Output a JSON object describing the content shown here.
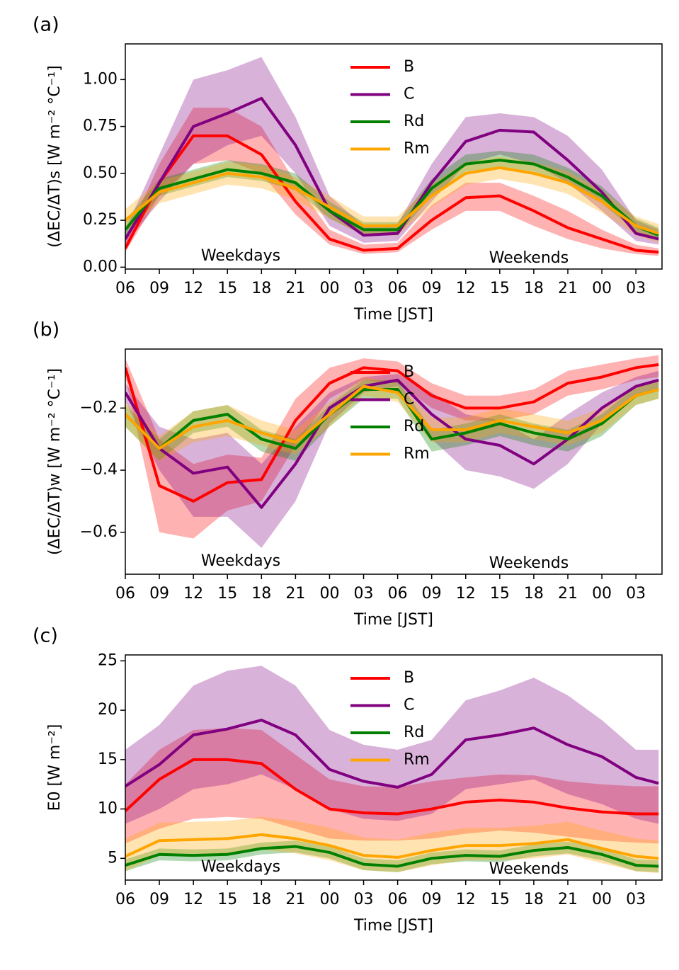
{
  "chart_data": [
    {
      "type": "line",
      "panel_label": "(a)",
      "y_label": "(ΔEC/ΔT)s [W m⁻² °C⁻¹]",
      "x_label": "Time [JST]",
      "annotations": [
        "Weekdays",
        "Weekends"
      ],
      "x": [
        0,
        3,
        6,
        9,
        12,
        15,
        18,
        21,
        24,
        27,
        30,
        33,
        36,
        39,
        42,
        45,
        47
      ],
      "xlim": [
        0,
        47.3
      ],
      "xticks": [
        {
          "value": 0,
          "label": "06"
        },
        {
          "value": 3,
          "label": "09"
        },
        {
          "value": 6,
          "label": "12"
        },
        {
          "value": 9,
          "label": "15"
        },
        {
          "value": 12,
          "label": "18"
        },
        {
          "value": 15,
          "label": "21"
        },
        {
          "value": 18,
          "label": "00"
        },
        {
          "value": 21,
          "label": "03"
        },
        {
          "value": 24,
          "label": "06"
        },
        {
          "value": 27,
          "label": "09"
        },
        {
          "value": 30,
          "label": "12"
        },
        {
          "value": 33,
          "label": "15"
        },
        {
          "value": 36,
          "label": "18"
        },
        {
          "value": 39,
          "label": "21"
        },
        {
          "value": 42,
          "label": "00"
        },
        {
          "value": 45,
          "label": "03"
        }
      ],
      "ylim": [
        -0.01,
        1.19
      ],
      "yticks": [
        {
          "value": 0,
          "label": "0.00"
        },
        {
          "value": 0.25,
          "label": "0.25"
        },
        {
          "value": 0.5,
          "label": "0.50"
        },
        {
          "value": 0.75,
          "label": "0.75"
        },
        {
          "value": 1,
          "label": "1.00"
        }
      ],
      "series": [
        {
          "name": "B",
          "color": "#ff0000",
          "values": [
            0.1,
            0.45,
            0.7,
            0.7,
            0.6,
            0.35,
            0.15,
            0.09,
            0.1,
            0.25,
            0.37,
            0.38,
            0.3,
            0.21,
            0.15,
            0.09,
            0.08
          ],
          "lower": [
            0.08,
            0.38,
            0.55,
            0.57,
            0.5,
            0.28,
            0.12,
            0.07,
            0.08,
            0.2,
            0.3,
            0.3,
            0.22,
            0.15,
            0.1,
            0.07,
            0.06
          ],
          "upper": [
            0.15,
            0.55,
            0.85,
            0.85,
            0.75,
            0.45,
            0.2,
            0.12,
            0.13,
            0.33,
            0.45,
            0.45,
            0.38,
            0.3,
            0.2,
            0.12,
            0.1
          ]
        },
        {
          "name": "C",
          "color": "#800080",
          "values": [
            0.15,
            0.45,
            0.75,
            0.82,
            0.9,
            0.65,
            0.3,
            0.17,
            0.18,
            0.45,
            0.67,
            0.73,
            0.72,
            0.57,
            0.4,
            0.18,
            0.15
          ],
          "lower": [
            0.12,
            0.35,
            0.55,
            0.65,
            0.7,
            0.5,
            0.22,
            0.13,
            0.14,
            0.35,
            0.55,
            0.6,
            0.55,
            0.45,
            0.3,
            0.14,
            0.12
          ],
          "upper": [
            0.2,
            0.6,
            1.0,
            1.05,
            1.12,
            0.8,
            0.38,
            0.22,
            0.23,
            0.55,
            0.8,
            0.82,
            0.8,
            0.7,
            0.52,
            0.25,
            0.2
          ]
        },
        {
          "name": "Rd",
          "color": "#008000",
          "values": [
            0.2,
            0.42,
            0.47,
            0.52,
            0.5,
            0.45,
            0.3,
            0.2,
            0.2,
            0.42,
            0.55,
            0.57,
            0.55,
            0.48,
            0.38,
            0.22,
            0.17
          ],
          "lower": [
            0.16,
            0.38,
            0.43,
            0.48,
            0.46,
            0.41,
            0.26,
            0.17,
            0.17,
            0.38,
            0.51,
            0.53,
            0.51,
            0.44,
            0.34,
            0.19,
            0.14
          ],
          "upper": [
            0.25,
            0.47,
            0.52,
            0.57,
            0.55,
            0.5,
            0.35,
            0.24,
            0.24,
            0.47,
            0.6,
            0.62,
            0.6,
            0.53,
            0.43,
            0.26,
            0.21
          ]
        },
        {
          "name": "Rm",
          "color": "#ffa500",
          "values": [
            0.25,
            0.4,
            0.45,
            0.5,
            0.48,
            0.42,
            0.32,
            0.22,
            0.22,
            0.38,
            0.5,
            0.53,
            0.5,
            0.45,
            0.35,
            0.22,
            0.18
          ],
          "lower": [
            0.19,
            0.34,
            0.39,
            0.44,
            0.42,
            0.36,
            0.26,
            0.17,
            0.17,
            0.32,
            0.44,
            0.47,
            0.44,
            0.39,
            0.29,
            0.17,
            0.13
          ],
          "upper": [
            0.31,
            0.46,
            0.51,
            0.56,
            0.54,
            0.48,
            0.38,
            0.27,
            0.27,
            0.44,
            0.56,
            0.59,
            0.56,
            0.51,
            0.41,
            0.27,
            0.23
          ]
        }
      ]
    },
    {
      "type": "line",
      "panel_label": "(b)",
      "y_label": "(ΔEC/ΔT)w [W m⁻² °C⁻¹]",
      "x_label": "Time [JST]",
      "annotations": [
        "Weekdays",
        "Weekends"
      ],
      "x": [
        0,
        3,
        6,
        9,
        12,
        15,
        18,
        21,
        24,
        27,
        30,
        33,
        36,
        39,
        42,
        45,
        47
      ],
      "xlim": [
        0,
        47.3
      ],
      "xticks": [
        {
          "value": 0,
          "label": "06"
        },
        {
          "value": 3,
          "label": "09"
        },
        {
          "value": 6,
          "label": "12"
        },
        {
          "value": 9,
          "label": "15"
        },
        {
          "value": 12,
          "label": "18"
        },
        {
          "value": 15,
          "label": "21"
        },
        {
          "value": 18,
          "label": "00"
        },
        {
          "value": 21,
          "label": "03"
        },
        {
          "value": 24,
          "label": "06"
        },
        {
          "value": 27,
          "label": "09"
        },
        {
          "value": 30,
          "label": "12"
        },
        {
          "value": 33,
          "label": "15"
        },
        {
          "value": 36,
          "label": "18"
        },
        {
          "value": 39,
          "label": "21"
        },
        {
          "value": 42,
          "label": "00"
        },
        {
          "value": 45,
          "label": "03"
        }
      ],
      "ylim": [
        -0.735,
        -0.01
      ],
      "yticks": [
        {
          "value": -0.6,
          "label": "−0.6"
        },
        {
          "value": -0.4,
          "label": "−0.4"
        },
        {
          "value": -0.2,
          "label": "−0.2"
        }
      ],
      "series": [
        {
          "name": "B",
          "color": "#ff0000",
          "values": [
            -0.07,
            -0.45,
            -0.5,
            -0.44,
            -0.43,
            -0.24,
            -0.12,
            -0.07,
            -0.08,
            -0.16,
            -0.2,
            -0.2,
            -0.18,
            -0.12,
            -0.1,
            -0.07,
            -0.06
          ],
          "lower": [
            -0.1,
            -0.6,
            -0.62,
            -0.53,
            -0.5,
            -0.32,
            -0.17,
            -0.11,
            -0.12,
            -0.2,
            -0.24,
            -0.24,
            -0.22,
            -0.16,
            -0.14,
            -0.11,
            -0.1
          ],
          "upper": [
            -0.04,
            -0.3,
            -0.38,
            -0.35,
            -0.36,
            -0.17,
            -0.07,
            -0.04,
            -0.05,
            -0.12,
            -0.16,
            -0.16,
            -0.14,
            -0.08,
            -0.06,
            -0.04,
            -0.03
          ]
        },
        {
          "name": "C",
          "color": "#800080",
          "values": [
            -0.15,
            -0.33,
            -0.41,
            -0.39,
            -0.52,
            -0.38,
            -0.2,
            -0.13,
            -0.11,
            -0.22,
            -0.3,
            -0.32,
            -0.38,
            -0.3,
            -0.2,
            -0.13,
            -0.11
          ],
          "lower": [
            -0.18,
            -0.4,
            -0.55,
            -0.55,
            -0.65,
            -0.5,
            -0.25,
            -0.15,
            -0.13,
            -0.3,
            -0.4,
            -0.42,
            -0.46,
            -0.38,
            -0.25,
            -0.16,
            -0.14
          ],
          "upper": [
            -0.12,
            -0.26,
            -0.3,
            -0.28,
            -0.38,
            -0.26,
            -0.15,
            -0.1,
            -0.09,
            -0.15,
            -0.22,
            -0.24,
            -0.3,
            -0.22,
            -0.15,
            -0.1,
            -0.08
          ]
        },
        {
          "name": "Rd",
          "color": "#008000",
          "values": [
            -0.22,
            -0.33,
            -0.24,
            -0.22,
            -0.3,
            -0.33,
            -0.22,
            -0.14,
            -0.14,
            -0.3,
            -0.28,
            -0.25,
            -0.28,
            -0.3,
            -0.25,
            -0.16,
            -0.14
          ],
          "lower": [
            -0.26,
            -0.37,
            -0.28,
            -0.26,
            -0.34,
            -0.37,
            -0.26,
            -0.17,
            -0.17,
            -0.34,
            -0.32,
            -0.29,
            -0.32,
            -0.34,
            -0.29,
            -0.19,
            -0.17
          ],
          "upper": [
            -0.19,
            -0.3,
            -0.21,
            -0.19,
            -0.27,
            -0.3,
            -0.19,
            -0.11,
            -0.11,
            -0.27,
            -0.25,
            -0.22,
            -0.25,
            -0.27,
            -0.22,
            -0.13,
            -0.11
          ]
        },
        {
          "name": "Rm",
          "color": "#ffa500",
          "values": [
            -0.22,
            -0.33,
            -0.26,
            -0.24,
            -0.28,
            -0.31,
            -0.22,
            -0.13,
            -0.15,
            -0.27,
            -0.27,
            -0.24,
            -0.26,
            -0.28,
            -0.24,
            -0.16,
            -0.14
          ],
          "lower": [
            -0.26,
            -0.37,
            -0.31,
            -0.29,
            -0.32,
            -0.35,
            -0.26,
            -0.16,
            -0.18,
            -0.31,
            -0.31,
            -0.28,
            -0.3,
            -0.32,
            -0.28,
            -0.19,
            -0.17
          ],
          "upper": [
            -0.18,
            -0.29,
            -0.21,
            -0.19,
            -0.24,
            -0.27,
            -0.18,
            -0.1,
            -0.12,
            -0.23,
            -0.23,
            -0.2,
            -0.22,
            -0.24,
            -0.2,
            -0.13,
            -0.11
          ]
        }
      ]
    },
    {
      "type": "line",
      "panel_label": "(c)",
      "y_label": "E0 [W m⁻²]",
      "x_label": "Time [JST]",
      "annotations": [
        "Weekdays",
        "Weekends"
      ],
      "x": [
        0,
        3,
        6,
        9,
        12,
        15,
        18,
        21,
        24,
        27,
        30,
        33,
        36,
        39,
        42,
        45,
        47
      ],
      "xlim": [
        0,
        47.3
      ],
      "xticks": [
        {
          "value": 0,
          "label": "06"
        },
        {
          "value": 3,
          "label": "09"
        },
        {
          "value": 6,
          "label": "12"
        },
        {
          "value": 9,
          "label": "15"
        },
        {
          "value": 12,
          "label": "18"
        },
        {
          "value": 15,
          "label": "21"
        },
        {
          "value": 18,
          "label": "00"
        },
        {
          "value": 21,
          "label": "03"
        },
        {
          "value": 24,
          "label": "06"
        },
        {
          "value": 27,
          "label": "09"
        },
        {
          "value": 30,
          "label": "12"
        },
        {
          "value": 33,
          "label": "15"
        },
        {
          "value": 36,
          "label": "18"
        },
        {
          "value": 39,
          "label": "21"
        },
        {
          "value": 42,
          "label": "00"
        },
        {
          "value": 45,
          "label": "03"
        }
      ],
      "ylim": [
        2.8,
        25.6
      ],
      "yticks": [
        5,
        10,
        15,
        20,
        25
      ],
      "series": [
        {
          "name": "B",
          "color": "#ff0000",
          "values": [
            9.8,
            13,
            15,
            15,
            14.6,
            12,
            10,
            9.6,
            9.5,
            10,
            10.7,
            10.9,
            10.7,
            10.1,
            9.7,
            9.5,
            9.5
          ],
          "lower": [
            6.5,
            8,
            9,
            9.2,
            9,
            8,
            7,
            6.8,
            6.8,
            7,
            7.5,
            7.8,
            7.6,
            7.2,
            6.8,
            6.6,
            6.5
          ],
          "upper": [
            12.5,
            16,
            18,
            18.2,
            18,
            15.5,
            13,
            12.3,
            12.2,
            12.8,
            13.2,
            13.5,
            13.4,
            12.8,
            12.5,
            12.3,
            12.3
          ]
        },
        {
          "name": "C",
          "color": "#800080",
          "values": [
            12.3,
            14.5,
            17.5,
            18.1,
            19,
            17.5,
            14,
            12.8,
            12.2,
            13.5,
            17,
            17.5,
            18.2,
            16.5,
            15.3,
            13.2,
            12.6
          ],
          "lower": [
            8.5,
            10,
            12,
            12.5,
            13.5,
            12,
            10,
            9,
            8.8,
            9.5,
            12,
            12.5,
            13,
            11.5,
            10.5,
            9,
            8.5
          ],
          "upper": [
            16,
            18.5,
            22.5,
            24,
            24.5,
            22.5,
            18,
            16.5,
            16,
            17,
            21,
            22,
            23.3,
            21.5,
            19,
            16,
            16
          ]
        },
        {
          "name": "Rd",
          "color": "#008000",
          "values": [
            4.3,
            5.4,
            5.3,
            5.4,
            6,
            6.2,
            5.6,
            4.4,
            4.2,
            5,
            5.3,
            5.2,
            5.8,
            6.1,
            5.4,
            4.3,
            4.2
          ],
          "lower": [
            3.7,
            4.8,
            4.7,
            4.8,
            5.4,
            5.6,
            5,
            3.8,
            3.6,
            4.4,
            4.7,
            4.6,
            5.2,
            5.5,
            4.8,
            3.7,
            3.6
          ],
          "upper": [
            4.9,
            6,
            5.9,
            6,
            6.6,
            6.8,
            6.2,
            5,
            4.8,
            5.6,
            5.9,
            5.8,
            6.4,
            6.7,
            6,
            4.9,
            4.8
          ]
        },
        {
          "name": "Rm",
          "color": "#ffa500",
          "values": [
            5.2,
            6.8,
            6.9,
            7,
            7.4,
            7,
            6.3,
            5.3,
            5.1,
            5.8,
            6.3,
            6.3,
            6.5,
            6.9,
            6,
            5.2,
            5
          ],
          "lower": [
            3.7,
            5.3,
            5.4,
            5.5,
            5.9,
            5.5,
            4.8,
            3.8,
            3.6,
            4.3,
            4.8,
            4.8,
            5,
            5.4,
            4.5,
            3.7,
            3.5
          ],
          "upper": [
            7,
            8.6,
            8.7,
            8.8,
            9.2,
            8.8,
            8.1,
            7.1,
            6.9,
            7.6,
            8.1,
            8.1,
            8.3,
            8.7,
            7.8,
            7,
            6.8
          ]
        }
      ]
    }
  ]
}
